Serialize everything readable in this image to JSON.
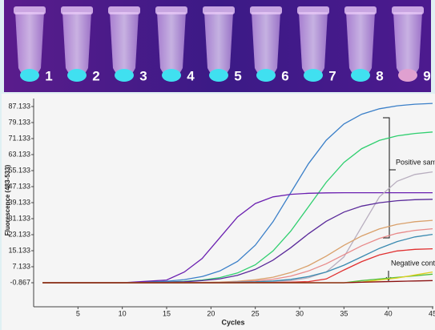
{
  "photo": {
    "labels": [
      "1",
      "2",
      "3",
      "4",
      "5",
      "6",
      "7",
      "8",
      "9"
    ]
  },
  "chart_data": {
    "type": "line",
    "x_label": "Cycles",
    "y_label": "Fluorescence (483-533)",
    "annotations": [
      "Positive samples",
      "Negative control"
    ],
    "x": [
      1,
      5,
      10,
      15,
      17,
      19,
      21,
      23,
      25,
      27,
      29,
      31,
      33,
      35,
      37,
      39,
      41,
      43,
      45
    ],
    "xlim": [
      0,
      45
    ],
    "xticks": [
      5,
      10,
      15,
      20,
      25,
      30,
      35,
      40,
      45
    ],
    "ylim": [
      -12.867,
      91.133
    ],
    "yticks": [
      -0.867,
      7.133,
      15.133,
      23.133,
      31.133,
      39.133,
      47.133,
      55.133,
      63.133,
      71.133,
      79.133,
      87.133
    ],
    "series": [
      {
        "color": "#3a7fc8",
        "values": [
          -0.867,
          -0.867,
          -0.867,
          -0.1,
          0.7,
          2.2,
          5.0,
          9.8,
          17.9,
          29.6,
          44.1,
          58.6,
          70.3,
          78.4,
          83.3,
          86.0,
          87.5,
          88.3,
          88.7
        ]
      },
      {
        "color": "#2fcf6f",
        "values": [
          -0.867,
          -0.867,
          -0.867,
          -0.5,
          -0.2,
          0.5,
          1.7,
          4.0,
          8.1,
          15.0,
          24.9,
          37.1,
          49.3,
          59.2,
          66.1,
          70.2,
          72.5,
          73.7,
          74.4
        ]
      },
      {
        "color": "#6a1fb0",
        "values": [
          -0.867,
          -0.867,
          -0.867,
          0.5,
          4.5,
          11.2,
          21.6,
          32.0,
          38.7,
          42.0,
          43.3,
          43.8,
          44.0,
          44.1,
          44.1,
          44.1,
          44.1,
          44.1,
          44.1
        ]
      },
      {
        "color": "#b8aebf",
        "values": [
          -0.867,
          -0.867,
          -0.867,
          -0.867,
          -0.867,
          -0.867,
          -0.867,
          -0.8,
          -0.6,
          -0.3,
          0.2,
          1.6,
          4.5,
          12.0,
          27.1,
          42.0,
          49.8,
          53.2,
          54.5
        ]
      },
      {
        "color": "#5a2a9a",
        "values": [
          -0.867,
          -0.867,
          -0.867,
          -0.6,
          -0.4,
          0.2,
          1.1,
          2.8,
          5.8,
          10.4,
          16.6,
          23.6,
          29.8,
          34.4,
          37.4,
          39.1,
          40.1,
          40.6,
          40.8
        ]
      },
      {
        "color": "#d9a06a",
        "values": [
          -0.867,
          -0.867,
          -0.867,
          -0.867,
          -0.8,
          -0.7,
          -0.5,
          -0.1,
          0.6,
          1.9,
          4.2,
          7.7,
          12.4,
          17.8,
          22.5,
          26.0,
          28.3,
          29.6,
          30.3
        ]
      },
      {
        "color": "#e88a8a",
        "values": [
          -0.867,
          -0.867,
          -0.867,
          -0.867,
          -0.867,
          -0.8,
          -0.7,
          -0.4,
          0.1,
          0.9,
          2.4,
          5.0,
          8.6,
          13.1,
          17.6,
          21.3,
          23.8,
          25.3,
          26.1
        ]
      },
      {
        "color": "#3a8ab0",
        "values": [
          -0.867,
          -0.867,
          -0.867,
          -0.867,
          -0.867,
          -0.867,
          -0.8,
          -0.6,
          -0.4,
          0.0,
          0.8,
          2.2,
          4.5,
          7.9,
          12.1,
          16.3,
          19.7,
          22.0,
          23.3
        ]
      },
      {
        "color": "#e03030",
        "values": [
          -0.867,
          -0.867,
          -0.867,
          -0.867,
          -0.867,
          -0.867,
          -0.867,
          -0.867,
          -0.8,
          -0.7,
          -0.6,
          -0.3,
          1.0,
          5.5,
          9.7,
          13.0,
          15.0,
          15.8,
          16.1
        ]
      },
      {
        "color": "#55c040",
        "values": [
          -0.867,
          -0.867,
          -0.867,
          -0.867,
          -0.867,
          -0.867,
          -0.867,
          -0.867,
          -0.867,
          -0.867,
          -0.867,
          -0.867,
          -0.867,
          -0.867,
          0.2,
          1.0,
          1.8,
          2.6,
          3.4
        ]
      },
      {
        "color": "#e0d020",
        "values": [
          -0.867,
          -0.867,
          -0.867,
          -0.867,
          -0.867,
          -0.867,
          -0.867,
          -0.867,
          -0.867,
          -0.867,
          -0.867,
          -0.867,
          -0.867,
          -0.867,
          -0.5,
          0.5,
          1.5,
          3.0,
          4.5
        ]
      },
      {
        "color": "#8a1010",
        "values": [
          -0.867,
          -0.867,
          -0.867,
          -0.867,
          -0.867,
          -0.867,
          -0.867,
          -0.867,
          -0.867,
          -0.867,
          -0.867,
          -0.867,
          -0.867,
          -0.867,
          -0.6,
          -0.4,
          -0.2,
          0.0,
          0.2
        ]
      }
    ]
  }
}
